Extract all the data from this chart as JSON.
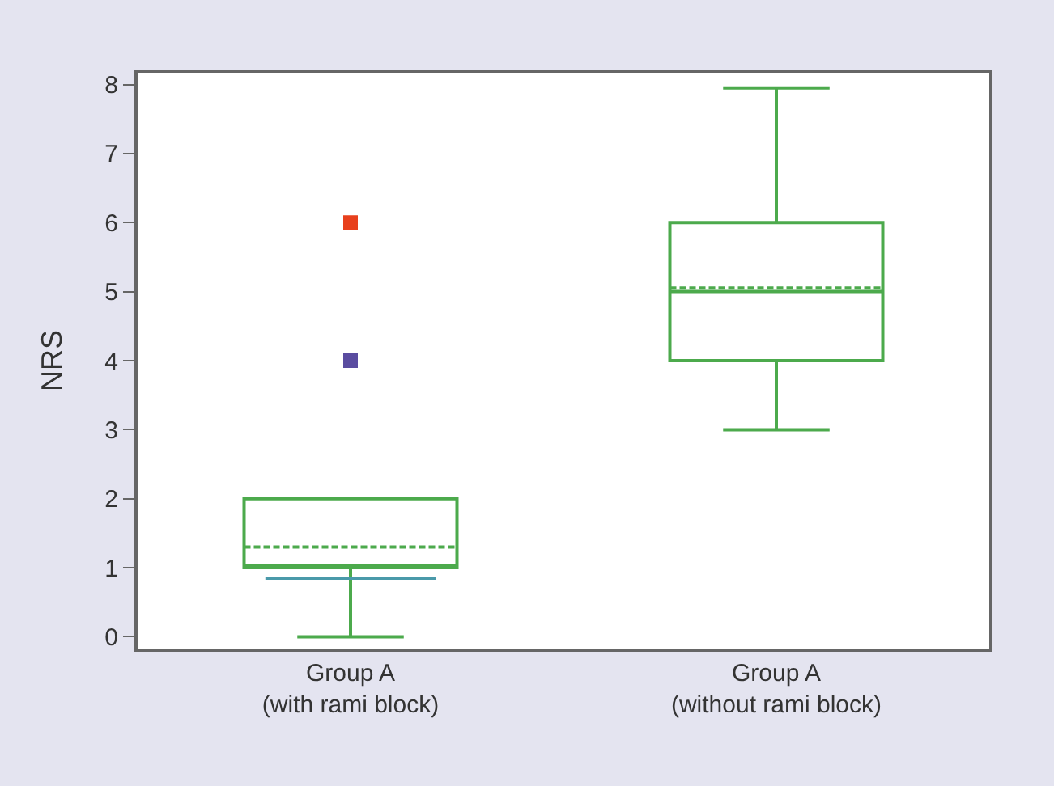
{
  "chart_data": {
    "type": "box",
    "ylabel": "NRS",
    "categories": [
      "Group A\n(with rami block)",
      "Group A\n(without rami block)"
    ],
    "ylim": [
      -0.17,
      8.17
    ],
    "yticks": [
      0,
      1,
      2,
      3,
      4,
      5,
      6,
      7,
      8
    ],
    "grid": false,
    "ref_lines": [
      {
        "axis": "y",
        "value": 0.85,
        "color": "#4a9aaa"
      }
    ],
    "series": [
      {
        "color": "#4caa4c",
        "boxes": [
          {
            "low": 0,
            "q1": 1,
            "median": 1,
            "q3": 2,
            "high": 2,
            "mean": 1.3
          },
          {
            "low": 3,
            "q1": 4,
            "median": 5,
            "q3": 6,
            "high": 7.95,
            "mean": 5.05
          }
        ]
      },
      {
        "type": "scatter",
        "color": "#e8401c",
        "marker": "square",
        "x": [
          "Group A\n(with rami block)"
        ],
        "values": [
          6
        ]
      },
      {
        "type": "scatter",
        "color": "#5a4ca0",
        "marker": "square",
        "x": [
          "Group A\n(with rami block)"
        ],
        "values": [
          4
        ]
      }
    ]
  }
}
